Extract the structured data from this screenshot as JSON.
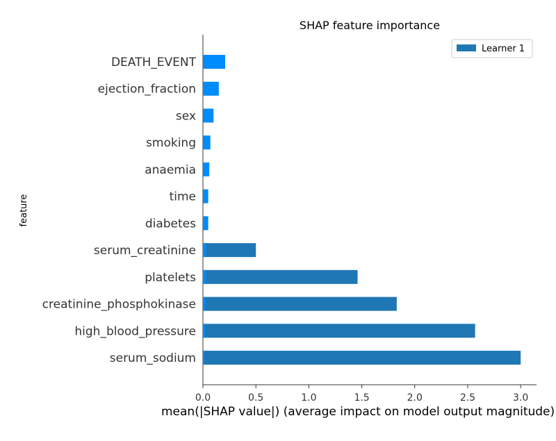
{
  "chart_data": {
    "type": "bar",
    "orientation": "horizontal",
    "title": "SHAP feature importance",
    "xlabel": "mean(|SHAP value|) (average impact on model output magnitude)",
    "ylabel": "feature",
    "xlim": [
      0,
      3.15
    ],
    "xticks": [
      0.0,
      0.5,
      1.0,
      1.5,
      2.0,
      2.5,
      3.0
    ],
    "xtick_labels": [
      "0.0",
      "0.5",
      "1.0",
      "1.5",
      "2.0",
      "2.5",
      "3.0"
    ],
    "grid": false,
    "legend_position": "top-right",
    "categories": [
      "DEATH_EVENT",
      "ejection_fraction",
      "sex",
      "smoking",
      "anaemia",
      "time",
      "diabetes",
      "serum_creatinine",
      "platelets",
      "creatinine_phosphokinase",
      "high_blood_pressure",
      "serum_sodium"
    ],
    "series": [
      {
        "name": "Learner 1",
        "color": "#1f77b4",
        "values": [
          0,
          0,
          0,
          0,
          0,
          0,
          0,
          0.5,
          1.46,
          1.83,
          2.57,
          3.0
        ]
      },
      {
        "name": "",
        "color": "#008bfb",
        "values": [
          0.21,
          0.15,
          0.1,
          0.07,
          0.06,
          0.05,
          0.05,
          0.03,
          0.03,
          0.025,
          0.02,
          0.015
        ]
      }
    ]
  }
}
